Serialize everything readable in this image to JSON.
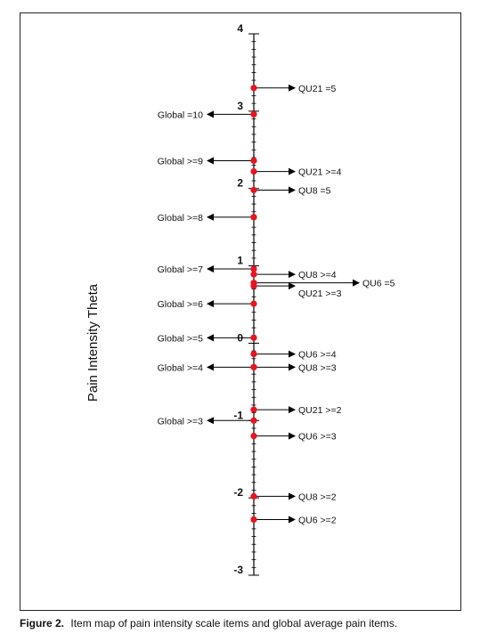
{
  "axis_title": "Pain Intensity Theta",
  "caption": {
    "label": "Figure 2.",
    "text": "Item map of pain intensity scale items and global average pain items."
  },
  "chart_data": {
    "type": "item-map",
    "ylabel": "Pain Intensity Theta",
    "ylim": [
      -3,
      4
    ],
    "major_ticks": [
      -3,
      -2,
      -1,
      0,
      1,
      2,
      3,
      4
    ],
    "minor_step": 0.1,
    "items_right": [
      {
        "label": "QU21 =5",
        "theta": 3.3
      },
      {
        "label": "QU21 >=4",
        "theta": 2.22
      },
      {
        "label": "QU8 =5",
        "theta": 1.98
      },
      {
        "label": "QU8 >=4",
        "theta": 0.89
      },
      {
        "label": "QU6 =5",
        "theta": 0.78
      },
      {
        "label": "QU21 >=3",
        "theta": 0.74
      },
      {
        "label": "QU6 >=4",
        "theta": -0.14
      },
      {
        "label": "QU8 >=3",
        "theta": -0.31
      },
      {
        "label": "QU21 >=2",
        "theta": -0.86
      },
      {
        "label": "QU6 >=3",
        "theta": -1.2
      },
      {
        "label": "QU8 >=2",
        "theta": -1.98
      },
      {
        "label": "QU6 >=2",
        "theta": -2.28
      }
    ],
    "items_left": [
      {
        "label": "Global =10",
        "theta": 2.96
      },
      {
        "label": "Global >=9",
        "theta": 2.36
      },
      {
        "label": "Global >=8",
        "theta": 1.63
      },
      {
        "label": "Global >=7",
        "theta": 0.96
      },
      {
        "label": "Global >=6",
        "theta": 0.51
      },
      {
        "label": "Global >=5",
        "theta": 0.07
      },
      {
        "label": "Global >=4",
        "theta": -0.31
      },
      {
        "label": "Global >=3",
        "theta": -1.0
      }
    ],
    "colors": {
      "marker": "#e8141f",
      "line": "#000000",
      "text": "#111111"
    }
  }
}
